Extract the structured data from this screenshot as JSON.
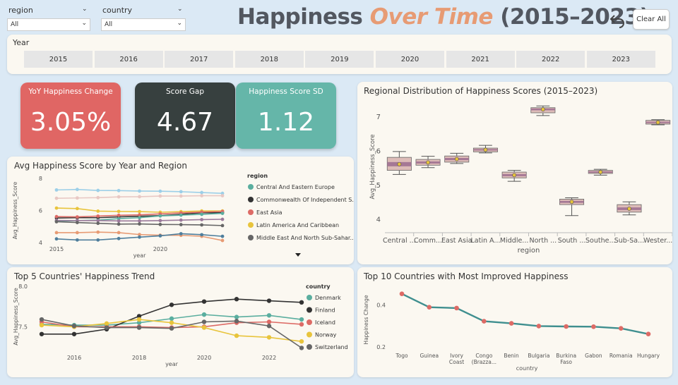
{
  "slicers": [
    {
      "label": "region",
      "value": "All"
    },
    {
      "label": "country",
      "value": "All"
    }
  ],
  "header": {
    "title_part1": "Happiness ",
    "title_accent": "Over Time",
    "title_part2": " (2015–2023)",
    "undo_icon": "undo-icon",
    "clear_label": "Clear All"
  },
  "year_slicer": {
    "label": "Year",
    "years": [
      "2015",
      "2016",
      "2017",
      "2018",
      "2019",
      "2020",
      "2021",
      "2022",
      "2023"
    ]
  },
  "kpis": [
    {
      "label": "YoY Happiness Change",
      "value": "3.05%",
      "color": "#e06664"
    },
    {
      "label": "Score Gap",
      "value": "4.67",
      "color": "#37403f"
    },
    {
      "label": "Happiness Score SD",
      "value": "1.12",
      "color": "#65b6a9"
    }
  ],
  "region_chart": {
    "title": "Avg Happiness Score by Year and Region",
    "legend_title": "region",
    "legend": [
      {
        "name": "Central And Eastern Europe",
        "color": "#5aae9f"
      },
      {
        "name": "Commonwealth Of Independent S...",
        "color": "#333333"
      },
      {
        "name": "East Asia",
        "color": "#dd6b66"
      },
      {
        "name": "Latin America And Caribbean",
        "color": "#e8c43c"
      },
      {
        "name": "Middle East And North Sub-Sahar...",
        "color": "#666666"
      }
    ],
    "more_icon": "triangle-down-icon",
    "chart_data": {
      "type": "line",
      "xlabel": "year",
      "ylabel": "Avg_Happiness_Score",
      "x": [
        2015,
        2016,
        2017,
        2018,
        2019,
        2020,
        2021,
        2022,
        2023
      ],
      "xticks": [
        2015,
        2020
      ],
      "yticks": [
        4,
        6,
        8
      ],
      "ylim": [
        4,
        8
      ],
      "series": [
        {
          "color": "#9ccfe8",
          "values": [
            7.28,
            7.31,
            7.25,
            7.24,
            7.21,
            7.2,
            7.17,
            7.12,
            7.07
          ]
        },
        {
          "color": "#e8c8c4",
          "values": [
            6.76,
            6.78,
            6.8,
            6.85,
            6.86,
            6.9,
            6.9,
            6.92,
            6.92
          ]
        },
        {
          "color": "#e8c43c",
          "values": [
            6.15,
            6.12,
            5.96,
            5.94,
            5.93,
            5.89,
            5.93,
            5.97,
            5.97
          ]
        },
        {
          "color": "#333333",
          "values": [
            5.53,
            5.55,
            5.55,
            5.6,
            5.64,
            5.68,
            5.76,
            5.86,
            5.86
          ]
        },
        {
          "color": "#dd6b66",
          "values": [
            5.62,
            5.6,
            5.65,
            5.7,
            5.73,
            5.79,
            5.85,
            5.9,
            5.94
          ]
        },
        {
          "color": "#5aae9f",
          "values": [
            5.33,
            5.37,
            5.4,
            5.49,
            5.55,
            5.66,
            5.71,
            5.76,
            5.82
          ]
        },
        {
          "color": "#9b7a9b",
          "values": [
            5.38,
            5.37,
            5.37,
            5.35,
            5.35,
            5.37,
            5.4,
            5.43,
            5.45
          ]
        },
        {
          "color": "#666666",
          "values": [
            5.3,
            5.25,
            5.2,
            5.15,
            5.16,
            5.13,
            5.12,
            5.1,
            5.06
          ]
        },
        {
          "color": "#e79b74",
          "values": [
            4.62,
            4.62,
            4.65,
            4.62,
            4.5,
            4.46,
            4.45,
            4.39,
            4.13
          ]
        },
        {
          "color": "#4e7e9c",
          "values": [
            4.23,
            4.16,
            4.16,
            4.25,
            4.34,
            4.42,
            4.55,
            4.49,
            4.39
          ]
        }
      ]
    }
  },
  "box_chart": {
    "title": "Regional Distribution of Happiness Scores (2015–2023)",
    "chart_data": {
      "type": "box",
      "xlabel": "region",
      "ylabel": "Avg_Happiness_Score",
      "ylim": [
        3.6,
        7.45
      ],
      "yticks": [
        4,
        5,
        6,
        7
      ],
      "categories": [
        "Central ...",
        "Comm...",
        "East Asia",
        "Latin A...",
        "Middle...",
        "North ...",
        "South ...",
        "Southe...",
        "Sub-Sa...",
        "Wester..."
      ],
      "boxes": [
        {
          "min": 5.3,
          "q1": 5.42,
          "median": 5.6,
          "q3": 5.8,
          "max": 5.97,
          "mean": 5.6
        },
        {
          "min": 5.5,
          "q1": 5.57,
          "median": 5.65,
          "q3": 5.74,
          "max": 5.83,
          "mean": 5.65
        },
        {
          "min": 5.62,
          "q1": 5.66,
          "median": 5.75,
          "q3": 5.84,
          "max": 5.92,
          "mean": 5.75
        },
        {
          "min": 5.93,
          "q1": 5.96,
          "median": 6.02,
          "q3": 6.07,
          "max": 6.15,
          "mean": 6.02
        },
        {
          "min": 5.1,
          "q1": 5.2,
          "median": 5.28,
          "q3": 5.37,
          "max": 5.42,
          "mean": 5.28
        },
        {
          "min": 7.02,
          "q1": 7.1,
          "median": 7.2,
          "q3": 7.25,
          "max": 7.3,
          "mean": 7.2
        },
        {
          "min": 4.1,
          "q1": 4.42,
          "median": 4.5,
          "q3": 4.58,
          "max": 4.62,
          "mean": 4.5
        },
        {
          "min": 5.28,
          "q1": 5.33,
          "median": 5.37,
          "q3": 5.42,
          "max": 5.45,
          "mean": 5.37
        },
        {
          "min": 4.12,
          "q1": 4.2,
          "median": 4.3,
          "q3": 4.42,
          "max": 4.5,
          "mean": 4.3
        },
        {
          "min": 6.75,
          "q1": 6.77,
          "median": 6.82,
          "q3": 6.88,
          "max": 6.9,
          "mean": 6.82
        }
      ],
      "box_color": "#ddbcb8",
      "median_band_color": "#a57895",
      "mean_color": "#e8c43c"
    }
  },
  "country_chart": {
    "title": "Top 5 Countries' Happiness Trend",
    "legend_title": "country",
    "legend": [
      {
        "name": "Denmark",
        "color": "#5aae9f"
      },
      {
        "name": "Finland",
        "color": "#333333"
      },
      {
        "name": "Iceland",
        "color": "#dd6b66"
      },
      {
        "name": "Norway",
        "color": "#e8c43c"
      },
      {
        "name": "Switzerland",
        "color": "#666666"
      }
    ],
    "chart_data": {
      "type": "line",
      "xlabel": "year",
      "ylabel": "Avg_Happiness_Score",
      "x": [
        2015,
        2016,
        2017,
        2018,
        2019,
        2020,
        2021,
        2022,
        2023
      ],
      "xticks": [
        2016,
        2018,
        2020,
        2022
      ],
      "yticks": [
        7.5,
        8.0
      ],
      "ytick_labels": [
        "7.5",
        "8.0"
      ],
      "ylim": [
        7.2,
        8.05
      ],
      "series": [
        {
          "name": "Denmark",
          "color": "#5aae9f",
          "values": [
            7.53,
            7.52,
            7.52,
            7.55,
            7.6,
            7.65,
            7.62,
            7.64,
            7.59
          ]
        },
        {
          "name": "Finland",
          "color": "#333333",
          "values": [
            7.41,
            7.41,
            7.47,
            7.63,
            7.77,
            7.81,
            7.84,
            7.82,
            7.8
          ]
        },
        {
          "name": "Iceland",
          "color": "#dd6b66",
          "values": [
            7.56,
            7.5,
            7.5,
            7.5,
            7.49,
            7.5,
            7.55,
            7.56,
            7.53
          ]
        },
        {
          "name": "Norway",
          "color": "#e8c43c",
          "values": [
            7.52,
            7.5,
            7.54,
            7.59,
            7.55,
            7.49,
            7.39,
            7.37,
            7.32
          ]
        },
        {
          "name": "Switzerland",
          "color": "#666666",
          "values": [
            7.59,
            7.51,
            7.49,
            7.49,
            7.48,
            7.56,
            7.57,
            7.51,
            7.24
          ]
        }
      ]
    }
  },
  "improved_chart": {
    "title": "Top 10 Countries with Most Improved Happiness",
    "chart_data": {
      "type": "line",
      "xlabel": "country",
      "ylabel": "Happiness Change",
      "ylim": [
        0.18,
        0.48
      ],
      "yticks": [
        0.2,
        0.4
      ],
      "ytick_labels": [
        "0.2",
        "0.4"
      ],
      "categories": [
        [
          "Togo"
        ],
        [
          "Guinea"
        ],
        [
          "Ivory",
          "Coast"
        ],
        [
          "Congo",
          "(Brazza..."
        ],
        [
          "Benin"
        ],
        [
          "Bulgaria"
        ],
        [
          "Burkina",
          "Faso"
        ],
        [
          "Gabon"
        ],
        [
          "Romania"
        ],
        [
          "Hungary"
        ]
      ],
      "values": [
        0.454,
        0.39,
        0.386,
        0.323,
        0.313,
        0.3,
        0.298,
        0.297,
        0.289,
        0.262
      ],
      "line_color": "#3f8f8f",
      "marker_color": "#dd6b66"
    }
  }
}
